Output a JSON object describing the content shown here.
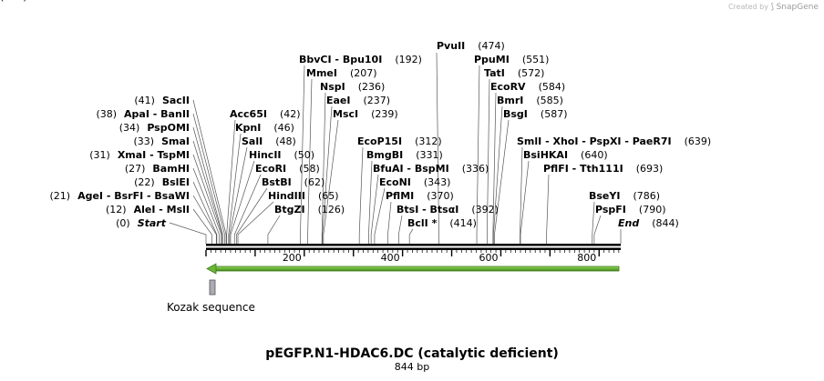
{
  "credit": {
    "prefix": "Created by",
    "brand": "SnapGene"
  },
  "title": "pEGFP.N1-HDAC6.DC (catalytic deficient)",
  "length_label": "844 bp",
  "sequence_length": 844,
  "axis_ticks": [
    "200",
    "400",
    "600",
    "800"
  ],
  "feature_label": "Kozak sequence",
  "colors": {
    "arrow": "#6ab535",
    "arrow_dark": "#2f5f12",
    "feature": "#a9acb4"
  },
  "sites": [
    {
      "name": "Start",
      "pos": 0,
      "num": "(0)",
      "italic": true
    },
    {
      "name": "AleI  -  MslI",
      "pos": 12,
      "num": "(12)"
    },
    {
      "name": "AgeI  -  BsrFI  -  BsaWI",
      "pos": 21,
      "num": "(21)"
    },
    {
      "name": "BslEI",
      "pos": 22,
      "num": "(22)"
    },
    {
      "name": "BamHI",
      "pos": 27,
      "num": "(27)"
    },
    {
      "name": "XmaI  -  TspMI",
      "pos": 31,
      "num": "(31)"
    },
    {
      "name": "SmaI",
      "pos": 33,
      "num": "(33)"
    },
    {
      "name": "PspOMI",
      "pos": 34,
      "num": "(34)"
    },
    {
      "name": "ApaI  -  BanII",
      "pos": 38,
      "num": "(38)"
    },
    {
      "name": "SacII",
      "pos": 41,
      "num": "(41)"
    },
    {
      "name": "Acc65I",
      "pos": 42,
      "num": "(42)"
    },
    {
      "name": "KpnI",
      "pos": 46,
      "num": "(46)"
    },
    {
      "name": "SalI",
      "pos": 48,
      "num": "(48)"
    },
    {
      "name": "HincII",
      "pos": 50,
      "num": "(50)"
    },
    {
      "name": "EcoRI",
      "pos": 58,
      "num": "(58)"
    },
    {
      "name": "BstBI",
      "pos": 62,
      "num": "(62)"
    },
    {
      "name": "HindIII",
      "pos": 65,
      "num": "(65)"
    },
    {
      "name": "BtgZI",
      "pos": 126,
      "num": "(126)"
    },
    {
      "name": "BbvCI  -  Bpu10I",
      "pos": 192,
      "num": "(192)"
    },
    {
      "name": "MmeI",
      "pos": 207,
      "num": "(207)"
    },
    {
      "name": "NspI",
      "pos": 236,
      "num": "(236)"
    },
    {
      "name": "EaeI",
      "pos": 237,
      "num": "(237)"
    },
    {
      "name": "MscI",
      "pos": 239,
      "num": "(239)"
    },
    {
      "name": "EcoP15I",
      "pos": 312,
      "num": "(312)"
    },
    {
      "name": "BmgBI",
      "pos": 331,
      "num": "(331)"
    },
    {
      "name": "BfuAI  -  BspMI",
      "pos": 336,
      "num": "(336)"
    },
    {
      "name": "EcoNI",
      "pos": 343,
      "num": "(343)"
    },
    {
      "name": "PflMI",
      "pos": 370,
      "num": "(370)"
    },
    {
      "name": "BtsI  -  BtsαI",
      "pos": 392,
      "num": "(392)"
    },
    {
      "name": "BclI *",
      "pos": 414,
      "num": "(414)"
    },
    {
      "name": "PvuII",
      "pos": 474,
      "num": "(474)"
    },
    {
      "name": "PpuMI",
      "pos": 551,
      "num": "(551)"
    },
    {
      "name": "TatI",
      "pos": 572,
      "num": "(572)"
    },
    {
      "name": "EcoRV",
      "pos": 584,
      "num": "(584)"
    },
    {
      "name": "BmrI",
      "pos": 585,
      "num": "(585)"
    },
    {
      "name": "BsgI",
      "pos": 587,
      "num": "(587)"
    },
    {
      "name": "SmlI  -  XhoI  -  PspXI  -  PaeR7I",
      "pos": 639,
      "num": "(639)"
    },
    {
      "name": "BsiHKAI",
      "pos": 640,
      "num": "(640)"
    },
    {
      "name": "PflFI  -  Tth111I",
      "pos": 693,
      "num": "(693)"
    },
    {
      "name": "BseYI",
      "pos": 786,
      "num": "(786)"
    },
    {
      "name": "PspFI",
      "pos": 790,
      "num": "(790)"
    },
    {
      "name": "End",
      "pos": 844,
      "num": "(844)",
      "italic": true
    }
  ]
}
